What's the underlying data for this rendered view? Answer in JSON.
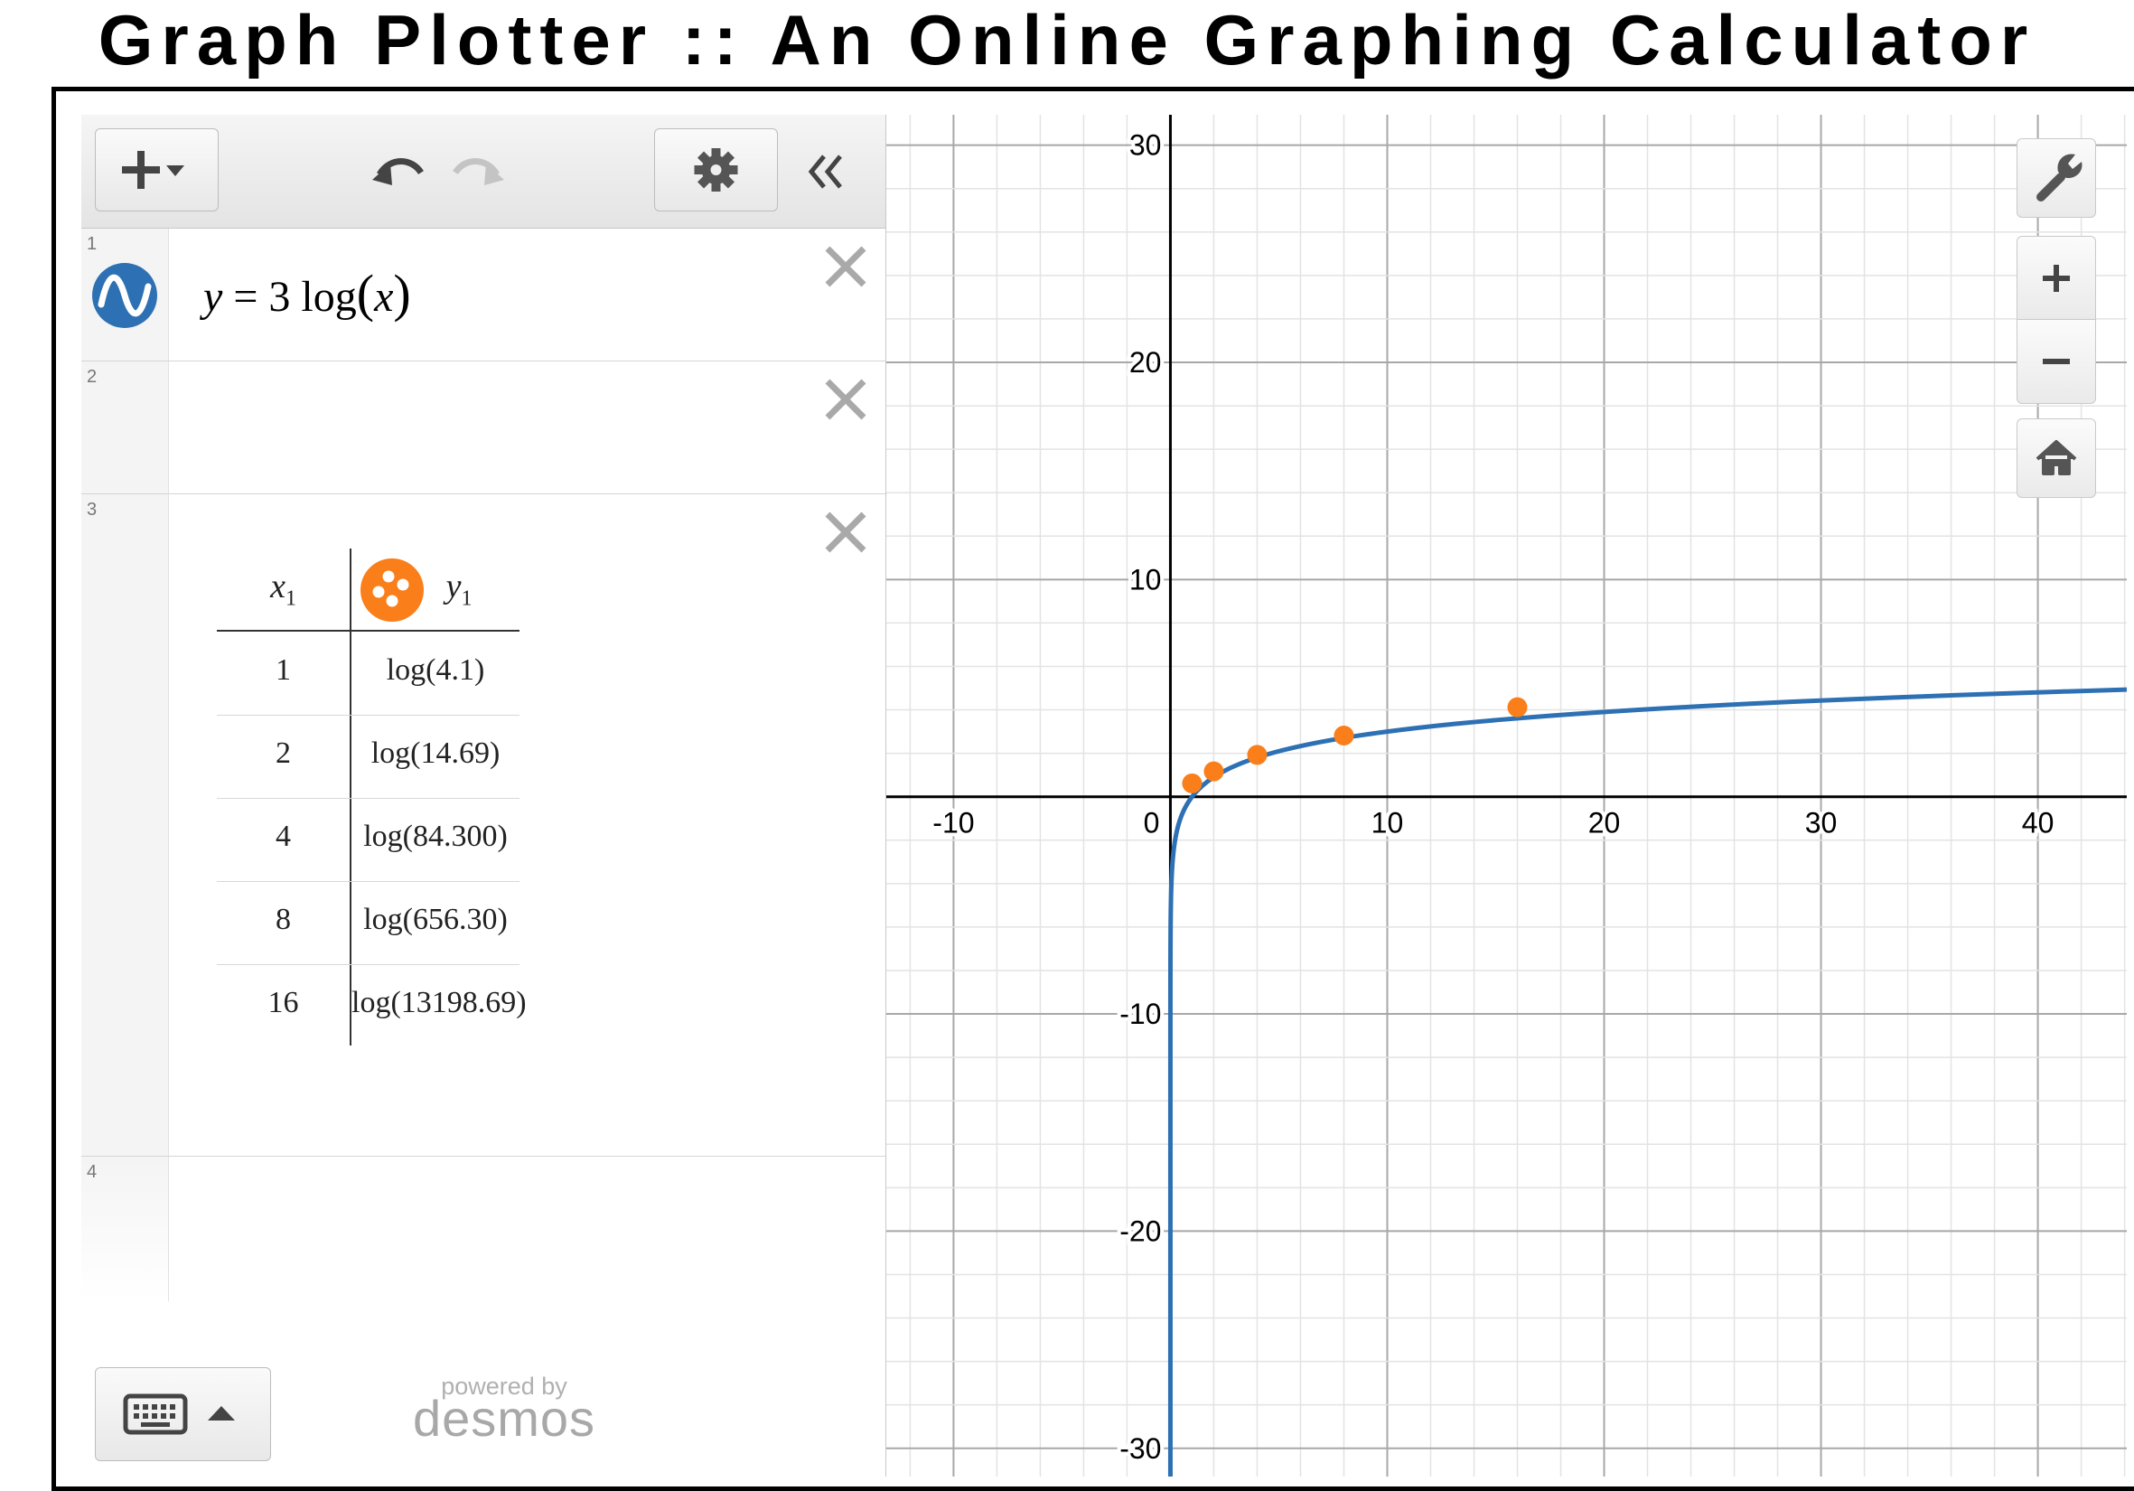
{
  "page": {
    "title": "Graph Plotter :: An Online Graphing Calculator"
  },
  "toolbar": {
    "add_icon": "plus-dropdown-icon",
    "undo_icon": "undo-icon",
    "redo_icon": "redo-icon",
    "settings_icon": "gear-icon",
    "collapse_icon": "double-chevron-left-icon"
  },
  "expressions": [
    {
      "index": "1",
      "latex_parts": [
        "y",
        "=",
        "3",
        "log",
        "(",
        "x",
        ")"
      ],
      "color": "#2d70b3",
      "icon": "sine-wave-icon"
    },
    {
      "index": "2"
    },
    {
      "index": "3",
      "type": "table",
      "headers": {
        "x": "x",
        "x_sub": "1",
        "y": "y",
        "y_sub": "1"
      },
      "color": "#fa7e19",
      "icon": "points-icon",
      "rows": [
        {
          "x": "1",
          "y_arg": "4.1"
        },
        {
          "x": "2",
          "y_arg": "14.69"
        },
        {
          "x": "4",
          "y_arg": "84.300"
        },
        {
          "x": "8",
          "y_arg": "656.30"
        },
        {
          "x": "16",
          "y_arg": "13198.69"
        }
      ],
      "func": "log"
    },
    {
      "index": "4"
    }
  ],
  "footer": {
    "keyboard_icon": "keyboard-icon",
    "caret_icon": "caret-up-icon",
    "powered_by": "powered by",
    "brand": "desmos"
  },
  "graph_controls": {
    "wrench": "wrench-icon",
    "zoom_in": "plus-icon",
    "zoom_out": "minus-icon",
    "home": "home-icon"
  },
  "colors": {
    "curve": "#2d70b3",
    "points": "#fa7e19",
    "axis": "#000000",
    "grid_major": "#a8a8a8",
    "grid_minor": "#e3e3e3"
  },
  "chart_data": {
    "type": "line",
    "xlim": [
      -13.1,
      44.1
    ],
    "ylim": [
      -31.3,
      31.4
    ],
    "x_ticks": [
      "-10",
      "10",
      "20",
      "30",
      "40"
    ],
    "y_ticks": [
      "30",
      "20",
      "10",
      "-10",
      "-20",
      "-30"
    ],
    "origin_label": "0",
    "grid": true,
    "series": [
      {
        "kind": "curve",
        "expression": "y = 3 log(x)"
      },
      {
        "kind": "points",
        "x": [
          1,
          2,
          4,
          8,
          16
        ],
        "y": [
          0.6128,
          1.1671,
          1.9258,
          2.8171,
          4.1205
        ]
      }
    ]
  }
}
